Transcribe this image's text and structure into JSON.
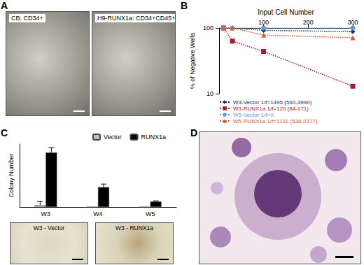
{
  "panel_labels": [
    "A",
    "B",
    "C",
    "D"
  ],
  "images": {
    "A": [
      "CB: CD34+",
      "H9-RUNX1a: CD34+CD45+"
    ],
    "C": [
      "W3 - Vector",
      "W3 - RUNX1a"
    ]
  },
  "chart_data": [
    {
      "type": "line",
      "x_label": "Input Cell Number",
      "y_label": "% of Negative Wells",
      "x": [
        10,
        30,
        100,
        300
      ],
      "series": [
        {
          "name": "W3-Vector 1/f=1495 (560-3990)",
          "color": "#1f2f5c",
          "marker": "diamond",
          "line_style": "dotted",
          "values": [
            100,
            100,
            92,
            88
          ]
        },
        {
          "name": "W3-RUNX1a 1/f=120 (84-171)",
          "color": "#a51d2d",
          "marker": "square",
          "line_style": "dotted",
          "values": [
            100,
            63,
            44,
            13
          ]
        },
        {
          "name": "W5-Vector 1/f=0",
          "color": "#5b9bd5",
          "marker": "circle",
          "line_style": "dotted",
          "values": [
            100,
            100,
            100,
            100
          ]
        },
        {
          "name": "W5-RUNX1a 1/f=1131 (538-2377)",
          "color": "#e8552a",
          "marker": "triangle",
          "line_style": "dotted",
          "values": [
            100,
            100,
            78,
            71
          ]
        }
      ],
      "xlim": [
        0,
        300
      ],
      "xticks": [
        100,
        200,
        300
      ],
      "ylim": [
        10,
        100
      ],
      "yticks": [
        10,
        100
      ],
      "log": "y",
      "grid": false,
      "legend": "bottom"
    },
    {
      "type": "bar",
      "y_label": "Colony Number",
      "categories": [
        "W3",
        "W4",
        "W5"
      ],
      "series": [
        {
          "name": "Vector",
          "color": "#bfbfbf",
          "values": [
            20,
            0,
            0
          ],
          "errors": [
            40,
            0,
            0
          ]
        },
        {
          "name": "RUNX1a",
          "color": "#000000",
          "values": [
            605,
            220,
            60
          ],
          "errors": [
            55,
            35,
            8
          ]
        }
      ],
      "ylim": [
        0,
        700
      ],
      "tick_labels": "x",
      "grid": false,
      "legend": "top"
    }
  ]
}
